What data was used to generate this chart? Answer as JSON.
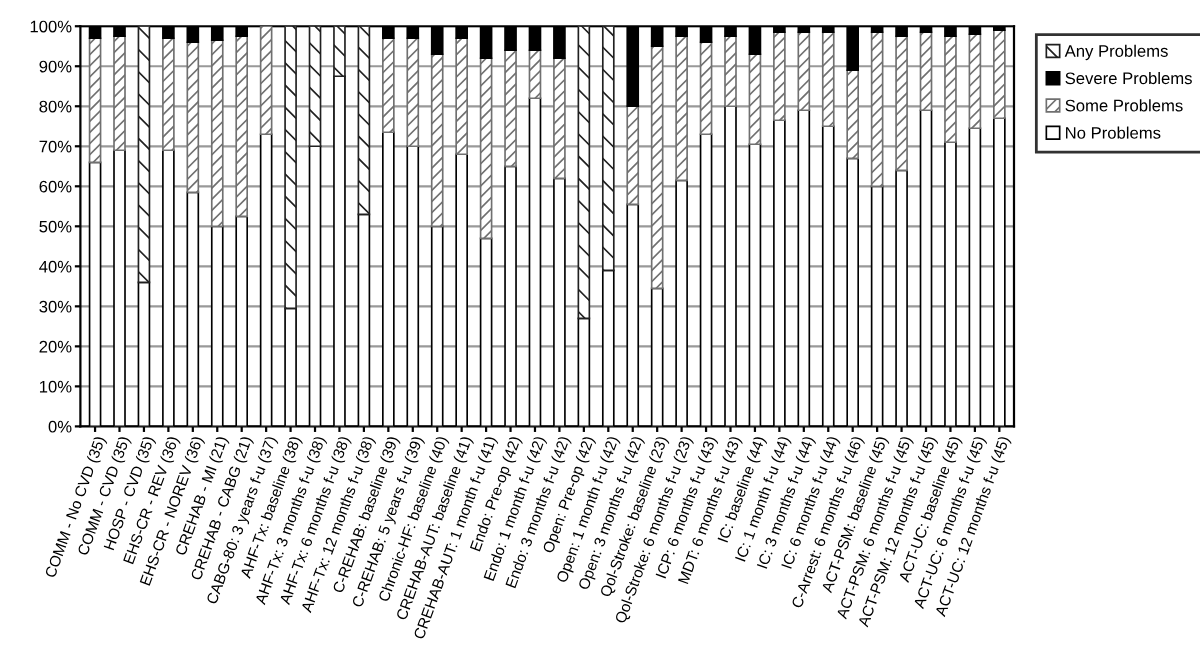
{
  "chart_data": {
    "type": "bar",
    "stacked": true,
    "categories": [
      "COMM - No CVD (35)",
      "COMM - CVD (35)",
      "HOSP - CVD (35)",
      "EHS-CR - REV (36)",
      "EHS-CR - NOREV (36)",
      "CREHAB - MI (21)",
      "CREHAB - CABG (21)",
      "CABG-80: 3 years f-u (37)",
      "AHF-Tx: baseline (38)",
      "AHF-Tx: 3 months f-u (38)",
      "AHF-Tx: 6 months f-u (38)",
      "AHF-Tx: 12 months f-u (38)",
      "C-REHAB: baseline (39)",
      "C-REHAB: 5 years f-u (39)",
      "Chronic-HF: baseline (40)",
      "CREHAB-AUT: baseline (41)",
      "CREHAB-AUT: 1 month f-u (41)",
      "Endo: Pre-op (42)",
      "Endo: 1 month f-u (42)",
      "Endo: 3 months f-u (42)",
      "Open: Pre-op (42)",
      "Open: 1 month f-u (42)",
      "Open: 3 months f-u (42)",
      "Qol-Stroke: baseline (23)",
      "Qol-Stroke: 6 months f-u (23)",
      "ICP: 6 months f-u (43)",
      "MDT: 6 months f-u (43)",
      "IC: baseline (44)",
      "IC: 1 month f-u (44)",
      "IC: 3 months f-u (44)",
      "IC: 6 months f-u (44)",
      "C-Arrest: 6 months f-u (46)",
      "ACT-PSM: baseline (45)",
      "ACT-PSM: 6 months f-u (45)",
      "ACT-PSM: 12 months f-u (45)",
      "ACT-UC: baseline (45)",
      "ACT-UC: 6 months f-u (45)",
      "ACT-UC: 12 months f-u (45)"
    ],
    "series": [
      {
        "name": "No Problems",
        "color": "#ffffff",
        "values": [
          66,
          69,
          36,
          69,
          58.5,
          50,
          52.5,
          73,
          29.5,
          70,
          87.5,
          53,
          73.5,
          70,
          50,
          68,
          47,
          65,
          82,
          62,
          27,
          39,
          55.5,
          34.5,
          61.5,
          73,
          80,
          70.5,
          76.5,
          79,
          75,
          67,
          60,
          64,
          79,
          71,
          74.5,
          77
        ]
      },
      {
        "name": "Some Problems",
        "color": "#707070",
        "values": [
          31,
          28.5,
          null,
          28,
          37.5,
          46.5,
          45,
          27,
          null,
          null,
          null,
          null,
          23.5,
          27,
          43,
          29,
          45,
          29,
          12,
          30,
          null,
          null,
          24.5,
          60.5,
          36,
          23,
          17.5,
          22.5,
          22,
          19.5,
          23.5,
          22,
          38.5,
          33.5,
          19.5,
          26.5,
          23.5,
          22
        ]
      },
      {
        "name": "Severe Problems",
        "color": "#000000",
        "values": [
          3,
          2.5,
          null,
          3,
          4,
          3.5,
          2.5,
          null,
          null,
          null,
          null,
          null,
          3,
          3,
          7,
          3,
          8,
          6,
          6,
          8,
          null,
          null,
          20,
          5,
          2.5,
          4,
          2.5,
          7,
          1.5,
          1.5,
          1.5,
          11,
          1.5,
          2.5,
          1.5,
          2.5,
          2,
          1
        ]
      },
      {
        "name": "Any Problems",
        "color": "#202020",
        "values": [
          null,
          null,
          64,
          null,
          null,
          null,
          null,
          null,
          70.5,
          30,
          12.5,
          47,
          null,
          null,
          null,
          null,
          null,
          null,
          null,
          null,
          73,
          61,
          null,
          null,
          null,
          null,
          null,
          null,
          null,
          null,
          null,
          null,
          null,
          null,
          null,
          null,
          null,
          null
        ]
      }
    ],
    "ylim": [
      0,
      100
    ],
    "yticks": [
      {
        "value": 0,
        "label": "0%"
      },
      {
        "value": 10,
        "label": "10%"
      },
      {
        "value": 20,
        "label": "20%"
      },
      {
        "value": 30,
        "label": "30%"
      },
      {
        "value": 40,
        "label": "40%"
      },
      {
        "value": 50,
        "label": "50%"
      },
      {
        "value": 60,
        "label": "60%"
      },
      {
        "value": 70,
        "label": "70%"
      },
      {
        "value": 80,
        "label": "80%"
      },
      {
        "value": 90,
        "label": "90%"
      },
      {
        "value": 100,
        "label": "100%"
      }
    ],
    "grid": "y",
    "legend": "right"
  }
}
